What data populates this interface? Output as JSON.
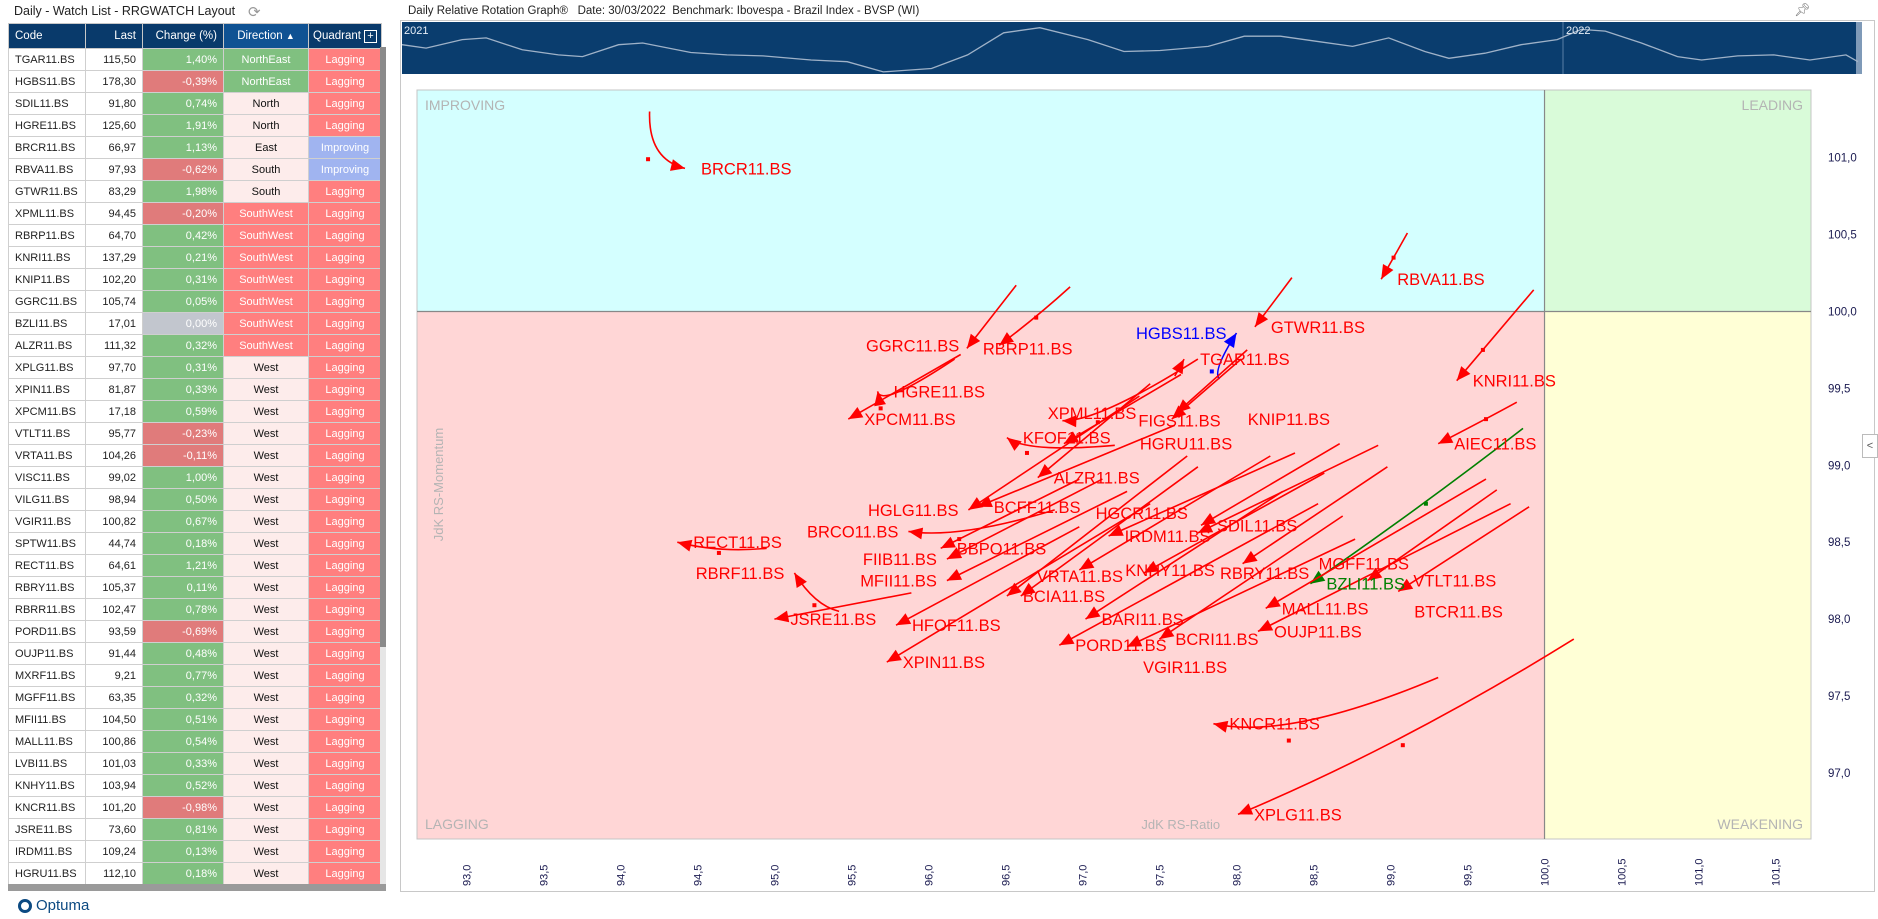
{
  "watchlist": {
    "title": "Daily - Watch List - RRGWATCH Layout",
    "refresh_icon": "refresh-icon",
    "columns": [
      "Code",
      "Last",
      "Change (%)",
      "Direction",
      "Quadrant"
    ],
    "sort_indicator": "▲",
    "add_column_icon": "+",
    "rows": [
      [
        "TGAR11.BS",
        "115,50",
        "1,40%",
        "NorthEast",
        "Lagging"
      ],
      [
        "HGBS11.BS",
        "178,30",
        "-0,39%",
        "NorthEast",
        "Lagging"
      ],
      [
        "SDIL11.BS",
        "91,80",
        "0,74%",
        "North",
        "Lagging"
      ],
      [
        "HGRE11.BS",
        "125,60",
        "1,91%",
        "North",
        "Lagging"
      ],
      [
        "BRCR11.BS",
        "66,97",
        "1,13%",
        "East",
        "Improving"
      ],
      [
        "RBVA11.BS",
        "97,93",
        "-0,62%",
        "South",
        "Improving"
      ],
      [
        "GTWR11.BS",
        "83,29",
        "1,98%",
        "South",
        "Lagging"
      ],
      [
        "XPML11.BS",
        "94,45",
        "-0,20%",
        "SouthWest",
        "Lagging"
      ],
      [
        "RBRP11.BS",
        "64,70",
        "0,42%",
        "SouthWest",
        "Lagging"
      ],
      [
        "KNRI11.BS",
        "137,29",
        "0,21%",
        "SouthWest",
        "Lagging"
      ],
      [
        "KNIP11.BS",
        "102,20",
        "0,31%",
        "SouthWest",
        "Lagging"
      ],
      [
        "GGRC11.BS",
        "105,74",
        "0,05%",
        "SouthWest",
        "Lagging"
      ],
      [
        "BZLI11.BS",
        "17,01",
        "0,00%",
        "SouthWest",
        "Lagging"
      ],
      [
        "ALZR11.BS",
        "111,32",
        "0,32%",
        "SouthWest",
        "Lagging"
      ],
      [
        "XPLG11.BS",
        "97,70",
        "0,31%",
        "West",
        "Lagging"
      ],
      [
        "XPIN11.BS",
        "81,87",
        "0,33%",
        "West",
        "Lagging"
      ],
      [
        "XPCM11.BS",
        "17,18",
        "0,59%",
        "West",
        "Lagging"
      ],
      [
        "VTLT11.BS",
        "95,77",
        "-0,23%",
        "West",
        "Lagging"
      ],
      [
        "VRTA11.BS",
        "104,26",
        "-0,11%",
        "West",
        "Lagging"
      ],
      [
        "VISC11.BS",
        "99,02",
        "1,00%",
        "West",
        "Lagging"
      ],
      [
        "VILG11.BS",
        "98,94",
        "0,50%",
        "West",
        "Lagging"
      ],
      [
        "VGIR11.BS",
        "100,82",
        "0,67%",
        "West",
        "Lagging"
      ],
      [
        "SPTW11.BS",
        "44,74",
        "0,18%",
        "West",
        "Lagging"
      ],
      [
        "RECT11.BS",
        "64,61",
        "1,21%",
        "West",
        "Lagging"
      ],
      [
        "RBRY11.BS",
        "105,37",
        "0,11%",
        "West",
        "Lagging"
      ],
      [
        "RBRR11.BS",
        "102,47",
        "0,78%",
        "West",
        "Lagging"
      ],
      [
        "PORD11.BS",
        "93,59",
        "-0,69%",
        "West",
        "Lagging"
      ],
      [
        "OUJP11.BS",
        "91,44",
        "0,48%",
        "West",
        "Lagging"
      ],
      [
        "MXRF11.BS",
        "9,21",
        "0,77%",
        "West",
        "Lagging"
      ],
      [
        "MGFF11.BS",
        "63,35",
        "0,32%",
        "West",
        "Lagging"
      ],
      [
        "MFII11.BS",
        "104,50",
        "0,51%",
        "West",
        "Lagging"
      ],
      [
        "MALL11.BS",
        "100,86",
        "0,54%",
        "West",
        "Lagging"
      ],
      [
        "LVBI11.BS",
        "101,03",
        "0,33%",
        "West",
        "Lagging"
      ],
      [
        "KNHY11.BS",
        "103,94",
        "0,52%",
        "West",
        "Lagging"
      ],
      [
        "KNCR11.BS",
        "101,20",
        "-0,98%",
        "West",
        "Lagging"
      ],
      [
        "JSRE11.BS",
        "73,60",
        "0,81%",
        "West",
        "Lagging"
      ],
      [
        "IRDM11.BS",
        "109,24",
        "0,13%",
        "West",
        "Lagging"
      ],
      [
        "HGRU11.BS",
        "112,10",
        "0,18%",
        "West",
        "Lagging"
      ]
    ]
  },
  "brand": {
    "logo_text": "Optuma"
  },
  "chart_header": {
    "title": "Daily Relative Rotation Graph®",
    "date": "Date: 30/03/2022",
    "benchmark": "Benchmark: Ibovespa - Brazil Index - BVSP (WI)",
    "pin_icon": "pin-icon",
    "collapse_icon": "<"
  },
  "navigator": {
    "labels": [
      "2021",
      "2022"
    ]
  },
  "colors": {
    "improving": "#d4ffff",
    "leading": "#d9fbd9",
    "lagging": "#ffd6d6",
    "weakening": "#ffffd6",
    "trail_default": "#ff0000",
    "trail_hgbs": "#0000ff",
    "trail_bzli": "#008000",
    "header_bg": "#093a6b",
    "positive": "#80c080",
    "negative": "#e07b7b"
  },
  "chart_data": {
    "type": "scatter",
    "subtype": "relative-rotation-graph",
    "xlabel": "JdK RS-Ratio",
    "ylabel": "JdK RS-Momentum",
    "xlim": [
      92.68,
      101.73
    ],
    "ylim": [
      96.57,
      101.44
    ],
    "center": [
      100,
      100
    ],
    "xticks": [
      "93,0",
      "93,5",
      "94,0",
      "94,5",
      "95,0",
      "95,5",
      "96,0",
      "96,5",
      "97,0",
      "97,5",
      "98,0",
      "98,5",
      "99,0",
      "99,5",
      "100,0",
      "100,5",
      "101,0",
      "101,5"
    ],
    "xtick_values": [
      93,
      93.5,
      94,
      94.5,
      95,
      95.5,
      96,
      96.5,
      97,
      97.5,
      98,
      98.5,
      99,
      99.5,
      100,
      100.5,
      101,
      101.5
    ],
    "yticks": [
      "101,0",
      "100,5",
      "100,0",
      "99,5",
      "99,0",
      "98,5",
      "98,0",
      "97,5",
      "97,0"
    ],
    "ytick_values": [
      101,
      100.5,
      100,
      99.5,
      99,
      98.5,
      98,
      97.5,
      97
    ],
    "quadrants": {
      "top_left": "IMPROVING",
      "top_right": "LEADING",
      "bottom_left": "LAGGING",
      "bottom_right": "WEAKENING"
    },
    "grid": false,
    "series": [
      {
        "name": "BRCR11.BS",
        "color": "#ff0000",
        "points": [
          [
            94.19,
            101.3
          ],
          [
            94.18,
            100.99
          ],
          [
            94.42,
            100.93
          ]
        ]
      },
      {
        "name": "RBVA11.BS",
        "color": "#ff0000",
        "points": [
          [
            99.11,
            100.51
          ],
          [
            99.02,
            100.35
          ],
          [
            98.94,
            100.21
          ]
        ]
      },
      {
        "name": "GTWR11.BS",
        "color": "#ff0000",
        "points": [
          [
            98.36,
            100.22
          ],
          [
            98.12,
            99.9
          ]
        ]
      },
      {
        "name": "KNRI11.BS",
        "color": "#ff0000",
        "points": [
          [
            99.93,
            100.14
          ],
          [
            99.6,
            99.75
          ],
          [
            99.43,
            99.55
          ]
        ]
      },
      {
        "name": "AIEC11.BS",
        "color": "#ff0000",
        "points": [
          [
            99.82,
            99.41
          ],
          [
            99.62,
            99.3
          ],
          [
            99.31,
            99.14
          ]
        ]
      },
      {
        "name": "BZLI11.BS",
        "color": "#008000",
        "points": [
          [
            99.86,
            99.24
          ],
          [
            99.23,
            98.75
          ],
          [
            98.48,
            98.23
          ]
        ]
      },
      {
        "name": "HGBS11.BS",
        "color": "#0000ff",
        "points": [
          [
            97.89,
            99.56
          ],
          [
            97.84,
            99.61
          ],
          [
            98.0,
            99.86
          ]
        ]
      },
      {
        "name": "TGAR11.BS",
        "color": "#ff0000",
        "points": [
          [
            97.6,
            99.58
          ],
          [
            97.66,
            99.69
          ]
        ]
      },
      {
        "name": "RBRP11.BS",
        "color": "#ff0000",
        "points": [
          [
            96.57,
            100.17
          ],
          [
            96.25,
            99.76
          ]
        ]
      },
      {
        "name": "GGRC11.BS",
        "color": "#ff0000",
        "points": [
          [
            96.92,
            100.16
          ],
          [
            96.7,
            99.96
          ],
          [
            96.46,
            99.78
          ]
        ]
      },
      {
        "name": "HGRE11.BS",
        "color": "#ff0000",
        "points": [
          [
            96.17,
            99.69
          ],
          [
            95.69,
            99.37
          ],
          [
            95.67,
            99.48
          ]
        ]
      },
      {
        "name": "XPCM11.BS",
        "color": "#ff0000",
        "points": [
          [
            96.21,
            99.72
          ],
          [
            95.48,
            99.3
          ]
        ]
      },
      {
        "name": "KFOF11.BS",
        "color": "#ff0000",
        "points": [
          [
            97.21,
            99.13
          ],
          [
            96.64,
            99.08
          ],
          [
            96.51,
            99.18
          ]
        ]
      },
      {
        "name": "HGRU11.BS",
        "color": "#ff0000",
        "points": [
          [
            97.64,
            99.59
          ],
          [
            96.88,
            99.14
          ]
        ]
      },
      {
        "name": "FIGS11.BS",
        "color": "#ff0000",
        "points": [
          [
            97.75,
            99.69
          ],
          [
            97.1,
            99.28
          ],
          [
            96.87,
            99.29
          ]
        ]
      },
      {
        "name": "KNIP11.BS",
        "color": "#ff0000",
        "points": [
          [
            98.03,
            99.69
          ],
          [
            97.58,
            99.3
          ]
        ]
      },
      {
        "name": "XPML11.BS",
        "color": "#ff0000",
        "points": [
          [
            98.07,
            99.75
          ],
          [
            97.61,
            99.34
          ]
        ]
      },
      {
        "name": "ALZR11.BS",
        "color": "#ff0000",
        "points": [
          [
            97.44,
            99.53
          ],
          [
            96.71,
            98.92
          ]
        ]
      },
      {
        "name": "HGLG11.BS",
        "color": "#ff0000",
        "points": [
          [
            97.37,
            99.45
          ],
          [
            96.26,
            98.71
          ]
        ]
      },
      {
        "name": "BCFF11.BS",
        "color": "#ff0000",
        "points": [
          [
            97.6,
            99.26
          ],
          [
            96.32,
            98.73
          ]
        ]
      },
      {
        "name": "RECT11.BS",
        "color": "#ff0000",
        "points": [
          [
            94.95,
            98.46
          ],
          [
            94.64,
            98.43
          ],
          [
            94.37,
            98.5
          ]
        ]
      },
      {
        "name": "BRCO11.BS",
        "color": "#ff0000",
        "points": [
          [
            96.82,
            98.71
          ],
          [
            96.2,
            98.52
          ],
          [
            95.87,
            98.57
          ]
        ]
      },
      {
        "name": "RBRF11.BS",
        "color": "#ff0000",
        "points": [
          [
            95.42,
            98.05
          ],
          [
            95.26,
            98.09
          ],
          [
            95.13,
            98.3
          ]
        ]
      },
      {
        "name": "JSRE11.BS",
        "color": "#ff0000",
        "points": [
          [
            95.89,
            98.17
          ],
          [
            95.0,
            98.0
          ]
        ]
      },
      {
        "name": "BBPO11.BS",
        "color": "#ff0000",
        "points": [
          [
            96.98,
            98.91
          ],
          [
            96.08,
            98.46
          ]
        ]
      },
      {
        "name": "FIIB11.BS",
        "color": "#ff0000",
        "points": [
          [
            97.13,
            98.91
          ],
          [
            96.12,
            98.39
          ]
        ]
      },
      {
        "name": "MFII11.BS",
        "color": "#ff0000",
        "points": [
          [
            97.29,
            98.83
          ],
          [
            96.12,
            98.25
          ]
        ]
      },
      {
        "name": "BCIA11.BS",
        "color": "#ff0000",
        "points": [
          [
            97.68,
            99.06
          ],
          [
            96.51,
            98.15
          ]
        ]
      },
      {
        "name": "VRTA11.BS",
        "color": "#ff0000",
        "points": [
          [
            97.75,
            98.99
          ],
          [
            96.6,
            98.15
          ]
        ]
      },
      {
        "name": "HFOF11.BS",
        "color": "#ff0000",
        "points": [
          [
            96.98,
            98.6
          ],
          [
            95.79,
            97.96
          ]
        ]
      },
      {
        "name": "XPIN11.BS",
        "color": "#ff0000",
        "points": [
          [
            97.44,
            98.75
          ],
          [
            95.73,
            97.72
          ]
        ]
      },
      {
        "name": "KNHY11.BS",
        "color": "#ff0000",
        "points": [
          [
            98.22,
            99.06
          ],
          [
            96.98,
            98.32
          ]
        ]
      },
      {
        "name": "IRDM11.BS",
        "color": "#ff0000",
        "points": [
          [
            98.38,
            99.08
          ],
          [
            97.17,
            98.54
          ]
        ]
      },
      {
        "name": "SDIL11.BS",
        "color": "#ff0000",
        "points": [
          [
            98.67,
            99.14
          ],
          [
            97.77,
            98.61
          ]
        ]
      },
      {
        "name": "HGCR11.BS",
        "color": "#ff0000",
        "points": [
          [
            98.92,
            99.13
          ],
          [
            97.75,
            98.56
          ]
        ]
      },
      {
        "name": "RBRY11.BS",
        "color": "#ff0000",
        "points": [
          [
            98.57,
            98.95
          ],
          [
            97.4,
            98.3
          ]
        ]
      },
      {
        "name": "BARI11.BS",
        "color": "#ff0000",
        "points": [
          [
            98.3,
            98.83
          ],
          [
            97.02,
            98.0
          ]
        ]
      },
      {
        "name": "PORD11.BS",
        "color": "#ff0000",
        "points": [
          [
            98.53,
            98.75
          ],
          [
            96.85,
            97.83
          ]
        ]
      },
      {
        "name": "BCRI11.BS",
        "color": "#ff0000",
        "points": [
          [
            98.69,
            98.67
          ],
          [
            97.5,
            97.87
          ]
        ]
      },
      {
        "name": "VGIR11.BS",
        "color": "#ff0000",
        "points": [
          [
            98.77,
            98.52
          ],
          [
            97.29,
            97.82
          ]
        ]
      },
      {
        "name": "MGFF11.BS",
        "color": "#ff0000",
        "points": [
          [
            98.98,
            98.99
          ],
          [
            98.04,
            98.36
          ]
        ]
      },
      {
        "name": "MALL11.BS",
        "color": "#ff0000",
        "points": [
          [
            99.62,
            98.91
          ],
          [
            98.19,
            98.07
          ]
        ]
      },
      {
        "name": "OUJP11.BS",
        "color": "#ff0000",
        "points": [
          [
            99.78,
            98.75
          ],
          [
            98.14,
            97.92
          ]
        ]
      },
      {
        "name": "VTLT11.BS",
        "color": "#ff0000",
        "points": [
          [
            99.69,
            98.84
          ],
          [
            98.85,
            98.25
          ]
        ]
      },
      {
        "name": "BTCR11.BS",
        "color": "#ff0000",
        "points": [
          [
            99.9,
            98.73
          ],
          [
            99.05,
            98.18
          ]
        ]
      },
      {
        "name": "KNCR11.BS",
        "color": "#ff0000",
        "points": [
          [
            99.31,
            97.62
          ],
          [
            98.34,
            97.21
          ],
          [
            97.85,
            97.32
          ]
        ]
      },
      {
        "name": "XPLG11.BS",
        "color": "#ff0000",
        "points": [
          [
            100.19,
            97.87
          ],
          [
            99.08,
            97.18
          ],
          [
            98.01,
            96.73
          ]
        ]
      }
    ]
  }
}
